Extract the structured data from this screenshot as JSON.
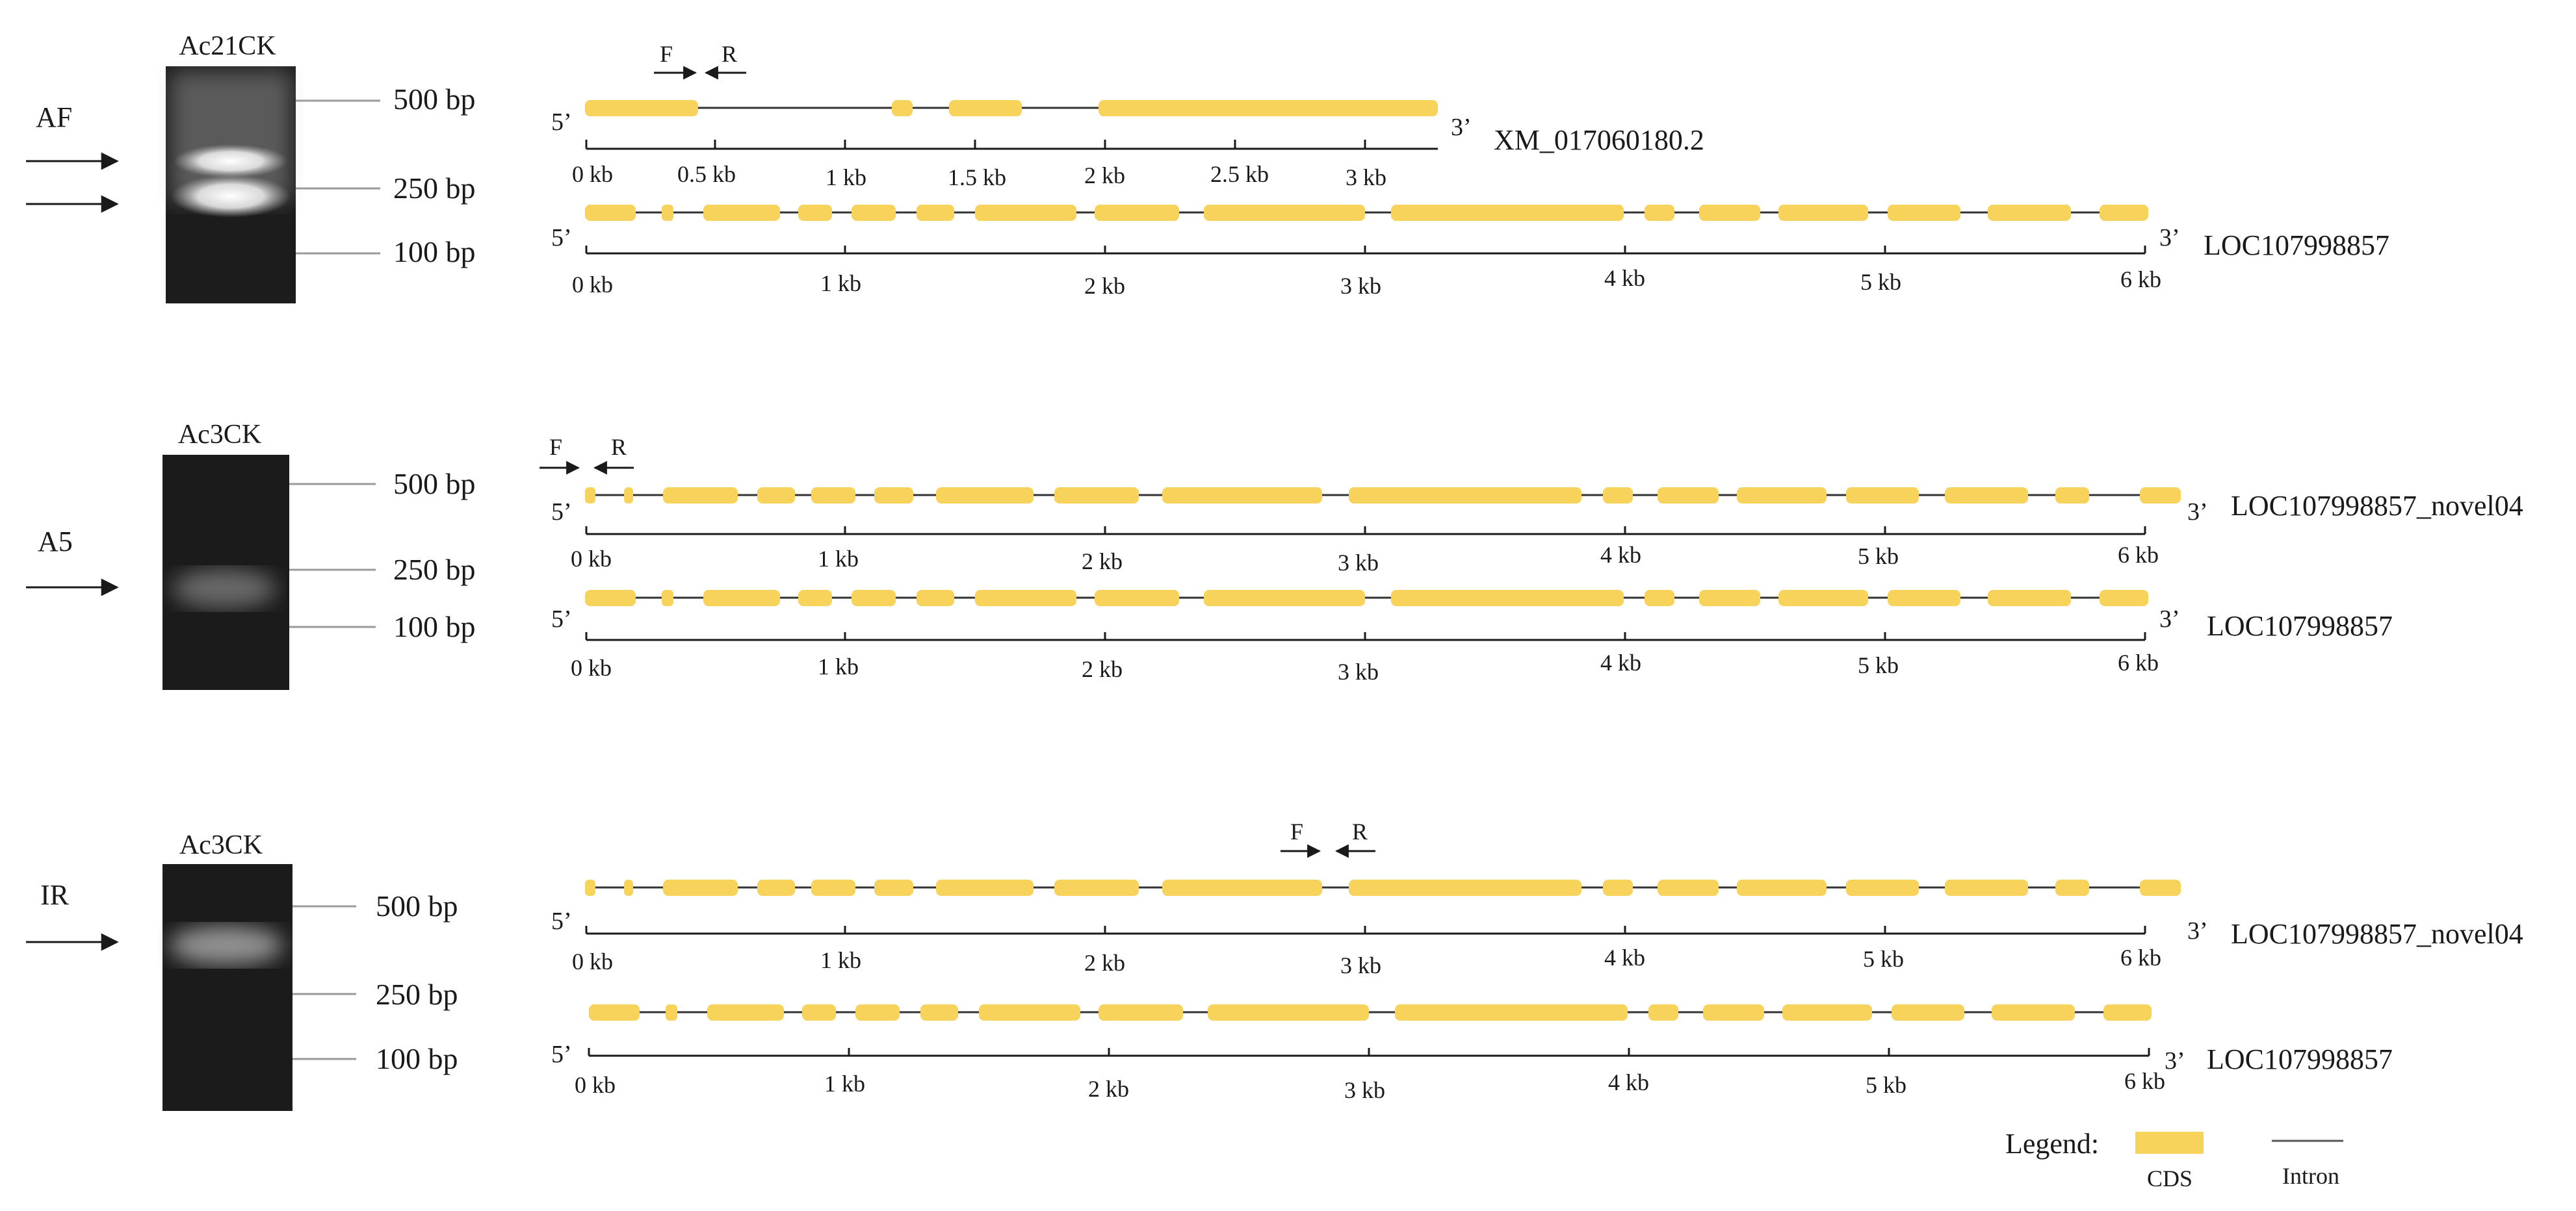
{
  "colors": {
    "cds": "#f7d35c",
    "intron": "#333333",
    "gel_bg": "#1b1b1b",
    "ladder_line": "#9a9a9a",
    "text": "#1a1a1a"
  },
  "scale_ticks": {
    "short": [
      "0 kb",
      "0.5 kb",
      "1 kb",
      "1.5 kb",
      "2 kb",
      "2.5 kb",
      "3 kb"
    ],
    "long": [
      "0 kb",
      "1 kb",
      "2 kb",
      "3 kb",
      "4 kb",
      "5 kb",
      "6 kb"
    ]
  },
  "panels": [
    {
      "event": "AF",
      "gel_title": "Ac21CK",
      "ladder": [
        "500 bp",
        "250 bp",
        "100 bp"
      ],
      "bands": [
        {
          "level": "upper",
          "brightness": 0.85
        },
        {
          "level": "lower",
          "brightness": 1.0
        }
      ],
      "arrow_count": 2,
      "primers": {
        "forward": "F",
        "reverse": "R"
      },
      "tracks": [
        {
          "id": "XM_017060180.2",
          "label": "XM_017060180.2",
          "scale": "short",
          "five_prime": "5’",
          "three_prime": "3’"
        },
        {
          "id": "LOC107998857",
          "label": "LOC107998857",
          "scale": "long",
          "five_prime": "5’",
          "three_prime": "3’"
        }
      ]
    },
    {
      "event": "A5",
      "gel_title": "Ac3CK",
      "ladder": [
        "500 bp",
        "250 bp",
        "100 bp"
      ],
      "bands": [
        {
          "level": "mid",
          "brightness": 0.45
        }
      ],
      "arrow_count": 1,
      "primers": {
        "forward": "F",
        "reverse": "R"
      },
      "tracks": [
        {
          "id": "LOC107998857_novel04",
          "label": "LOC107998857_novel04",
          "scale": "long",
          "five_prime": "5’",
          "three_prime": "3’"
        },
        {
          "id": "LOC107998857",
          "label": "LOC107998857",
          "scale": "long",
          "five_prime": "5’",
          "three_prime": "3’"
        }
      ]
    },
    {
      "event": "IR",
      "gel_title": "Ac3CK",
      "ladder": [
        "500 bp",
        "250 bp",
        "100 bp"
      ],
      "bands": [
        {
          "level": "upper",
          "brightness": 0.6
        }
      ],
      "arrow_count": 1,
      "primers": {
        "forward": "F",
        "reverse": "R"
      },
      "tracks": [
        {
          "id": "LOC107998857_novel04",
          "label": "LOC107998857_novel04",
          "scale": "long",
          "five_prime": "5’",
          "three_prime": "3’"
        },
        {
          "id": "LOC107998857",
          "label": "LOC107998857",
          "scale": "long",
          "five_prime": "5’",
          "three_prime": "3’"
        }
      ]
    }
  ],
  "legend": {
    "title": "Legend:",
    "cds_label": "CDS",
    "intron_label": "Intron"
  }
}
